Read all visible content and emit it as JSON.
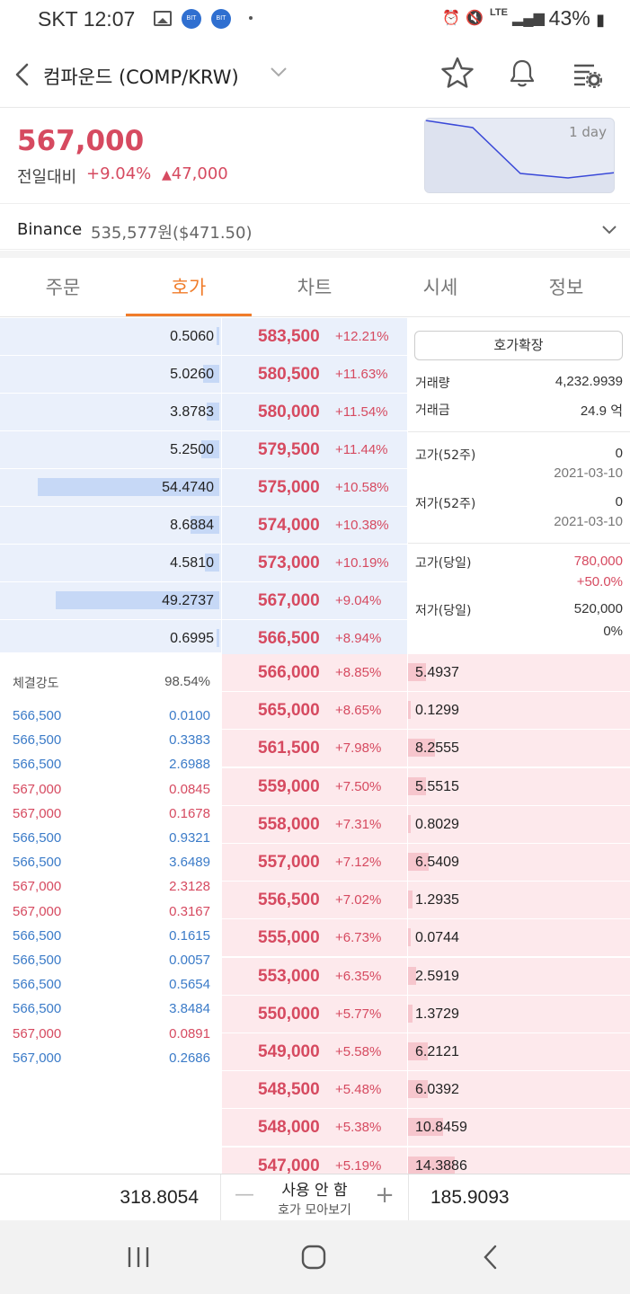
{
  "status_bar": {
    "carrier": "SKT",
    "time": "12:07",
    "battery": "43%",
    "app_badge": "BIT"
  },
  "header": {
    "title": "컴파운드 (COMP/KRW)"
  },
  "price": {
    "current": "567,000",
    "change_label": "전일대비",
    "change_pct": "+9.04%",
    "change_abs": "47,000"
  },
  "sparkline": {
    "label": "1 day",
    "points": [
      1.0,
      0.9,
      0.25,
      0.18,
      0.26
    ]
  },
  "binance": {
    "name": "Binance",
    "value": "535,577원($471.50)"
  },
  "tabs": [
    {
      "label": "주문"
    },
    {
      "label": "호가"
    },
    {
      "label": "차트"
    },
    {
      "label": "시세"
    },
    {
      "label": "정보"
    }
  ],
  "asks": [
    {
      "qty": "0.5060",
      "fill": 0.01,
      "price": "583,500",
      "pct": "+12.21%"
    },
    {
      "qty": "5.0260",
      "fill": 0.09,
      "price": "580,500",
      "pct": "+11.63%"
    },
    {
      "qty": "3.8783",
      "fill": 0.07,
      "price": "580,000",
      "pct": "+11.54%"
    },
    {
      "qty": "5.2500",
      "fill": 0.1,
      "price": "579,500",
      "pct": "+11.44%"
    },
    {
      "qty": "54.4740",
      "fill": 1.0,
      "price": "575,000",
      "pct": "+10.58%"
    },
    {
      "qty": "8.6884",
      "fill": 0.16,
      "price": "574,000",
      "pct": "+10.38%"
    },
    {
      "qty": "4.5810",
      "fill": 0.08,
      "price": "573,000",
      "pct": "+10.19%"
    },
    {
      "qty": "49.2737",
      "fill": 0.9,
      "price": "567,000",
      "pct": "+9.04%"
    },
    {
      "qty": "0.6995",
      "fill": 0.01,
      "price": "566,500",
      "pct": "+8.94%"
    }
  ],
  "bids": [
    {
      "qty": "5.4937",
      "fill": 0.38,
      "price": "566,000",
      "pct": "+8.85%"
    },
    {
      "qty": "0.1299",
      "fill": 0.01,
      "price": "565,000",
      "pct": "+8.65%"
    },
    {
      "qty": "8.2555",
      "fill": 0.57,
      "price": "561,500",
      "pct": "+7.98%"
    },
    {
      "qty": "5.5515",
      "fill": 0.39,
      "price": "559,000",
      "pct": "+7.50%"
    },
    {
      "qty": "0.8029",
      "fill": 0.06,
      "price": "558,000",
      "pct": "+7.31%"
    },
    {
      "qty": "6.5409",
      "fill": 0.45,
      "price": "557,000",
      "pct": "+7.12%"
    },
    {
      "qty": "1.2935",
      "fill": 0.09,
      "price": "556,500",
      "pct": "+7.02%"
    },
    {
      "qty": "0.0744",
      "fill": 0.01,
      "price": "555,000",
      "pct": "+6.73%"
    },
    {
      "qty": "2.5919",
      "fill": 0.18,
      "price": "553,000",
      "pct": "+6.35%"
    },
    {
      "qty": "1.3729",
      "fill": 0.1,
      "price": "550,000",
      "pct": "+5.77%"
    },
    {
      "qty": "6.2121",
      "fill": 0.43,
      "price": "549,000",
      "pct": "+5.58%"
    },
    {
      "qty": "6.0392",
      "fill": 0.42,
      "price": "548,500",
      "pct": "+5.48%"
    },
    {
      "qty": "10.8459",
      "fill": 0.75,
      "price": "548,000",
      "pct": "+5.38%"
    },
    {
      "qty": "14.3886",
      "fill": 1.0,
      "price": "547,000",
      "pct": "+5.19%"
    }
  ],
  "info_panel": {
    "expand_button": "호가확장",
    "volume_label": "거래량",
    "volume": "4,232.9939",
    "amount_label": "거래금",
    "amount": "24.9 억",
    "high52_label": "고가(52주)",
    "high52": "0",
    "high52_date": "2021-03-10",
    "low52_label": "저가(52주)",
    "low52": "0",
    "low52_date": "2021-03-10",
    "high_today_label": "고가(당일)",
    "high_today": "780,000",
    "high_today_pct": "+50.0%",
    "low_today_label": "저가(당일)",
    "low_today": "520,000",
    "low_today_pct": "0%"
  },
  "trades": {
    "strength_label": "체결강도",
    "strength": "98.54%",
    "rows": [
      {
        "price": "566,500",
        "qty": "0.0100",
        "side": "sell"
      },
      {
        "price": "566,500",
        "qty": "0.3383",
        "side": "sell"
      },
      {
        "price": "566,500",
        "qty": "2.6988",
        "side": "sell"
      },
      {
        "price": "567,000",
        "qty": "0.0845",
        "side": "buy"
      },
      {
        "price": "567,000",
        "qty": "0.1678",
        "side": "buy"
      },
      {
        "price": "566,500",
        "qty": "0.9321",
        "side": "sell"
      },
      {
        "price": "566,500",
        "qty": "3.6489",
        "side": "sell"
      },
      {
        "price": "567,000",
        "qty": "2.3128",
        "side": "buy"
      },
      {
        "price": "567,000",
        "qty": "0.3167",
        "side": "buy"
      },
      {
        "price": "566,500",
        "qty": "0.1615",
        "side": "sell"
      },
      {
        "price": "566,500",
        "qty": "0.0057",
        "side": "sell"
      },
      {
        "price": "566,500",
        "qty": "0.5654",
        "side": "sell"
      },
      {
        "price": "566,500",
        "qty": "3.8484",
        "side": "sell"
      },
      {
        "price": "567,000",
        "qty": "0.0891",
        "side": "buy"
      },
      {
        "price": "567,000",
        "qty": "0.2686",
        "side": "sell"
      }
    ]
  },
  "bottom": {
    "total_ask": "318.8054",
    "total_bid": "185.9093",
    "aggregate_main": "사용 안 함",
    "aggregate_sub": "호가 모아보기"
  },
  "colors": {
    "up": "#d64a60",
    "down": "#3b7bc8",
    "accent": "#f07c2a",
    "ask_bg": "#eaf0fb",
    "bid_bg": "#fde9ec"
  }
}
